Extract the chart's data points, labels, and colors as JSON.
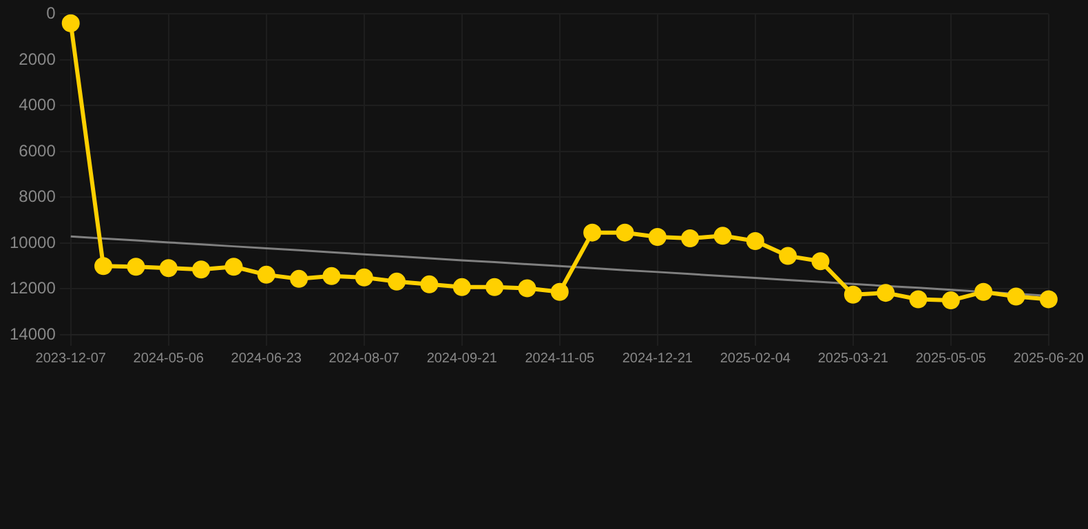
{
  "chart_data": {
    "type": "line",
    "categories": [
      "2023-12-07",
      null,
      null,
      "2024-05-06",
      null,
      null,
      "2024-06-23",
      null,
      null,
      "2024-08-07",
      null,
      null,
      "2024-09-21",
      null,
      null,
      "2024-11-05",
      null,
      null,
      "2024-12-21",
      null,
      null,
      "2025-02-04",
      null,
      null,
      "2025-03-21",
      null,
      null,
      "2025-05-05",
      null,
      null,
      "2025-06-20"
    ],
    "series": [
      {
        "color": "#ffd000",
        "marker": "circle",
        "values": [
          400,
          11000,
          11030,
          11090,
          11150,
          11030,
          11380,
          11560,
          11440,
          11500,
          11680,
          11800,
          11920,
          11920,
          11970,
          12130,
          9540,
          9540,
          9730,
          9790,
          9680,
          9910,
          10560,
          10790,
          12250,
          12170,
          12450,
          12500,
          12130,
          12330,
          12450
        ]
      },
      {
        "type": "line",
        "color": "#808080",
        "marker": "none",
        "values": [
          9710,
          9800,
          9880,
          9970,
          10050,
          10140,
          10230,
          10310,
          10400,
          10490,
          10570,
          10660,
          10750,
          10830,
          10920,
          11000,
          11090,
          11180,
          11260,
          11350,
          11440,
          11520,
          11610,
          11690,
          11780,
          11870,
          11950,
          12040,
          12130,
          12210,
          12300
        ]
      }
    ],
    "ylim": [
      14000,
      0
    ],
    "yticks": [
      0,
      2000,
      4000,
      6000,
      8000,
      10000,
      12000,
      14000
    ],
    "grid": true,
    "legend": false
  }
}
